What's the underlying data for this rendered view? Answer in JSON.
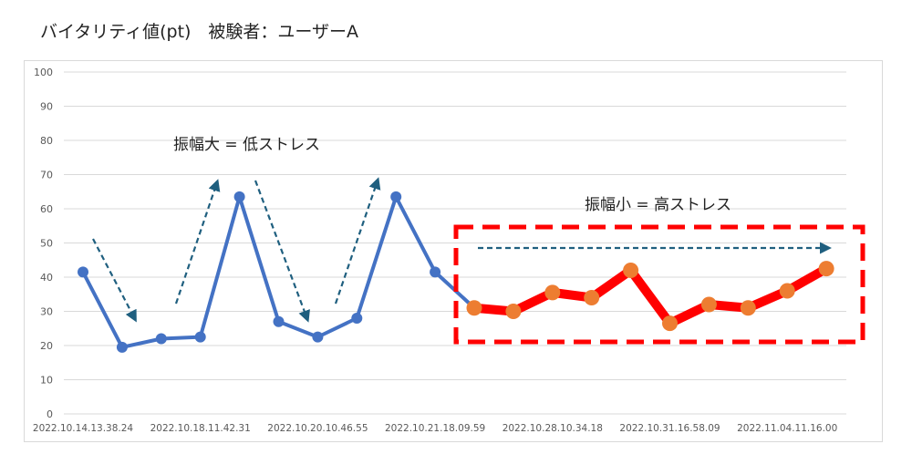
{
  "title": "バイタリティ値(pt)　被験者：ユーザーA",
  "chart_data": {
    "type": "line",
    "ylim": [
      0,
      100
    ],
    "yticks": [
      0,
      10,
      20,
      30,
      40,
      50,
      60,
      70,
      80,
      90,
      100
    ],
    "grid": true,
    "x_tick_labels": [
      "2022.10.14.13.38.24",
      "2022.10.18.11.42.31",
      "2022.10.20.10.46.55",
      "2022.10.21.18.09.59",
      "2022.10.28.10.34.18",
      "2022.10.31.16.58.09",
      "2022.11.04.11.16.00"
    ],
    "series": [
      {
        "color": "#4472c4",
        "values": [
          41.5,
          19.5,
          22,
          22.5,
          63.5,
          27,
          22.5,
          28,
          63.5,
          41.5,
          31
        ]
      },
      {
        "color": "#ff0000",
        "marker_color": "#ed7d31",
        "start_index": 10,
        "values": [
          31,
          30,
          35.5,
          34,
          42,
          26.5,
          32,
          31,
          36,
          42.5
        ]
      }
    ],
    "annotations": {
      "high_amplitude": "振幅大 = 低ストレス",
      "low_amplitude": "振幅小 = 高ストレス"
    },
    "annotation_colors": {
      "arrow": "#1f5f7f",
      "box": "#ff0000"
    }
  }
}
